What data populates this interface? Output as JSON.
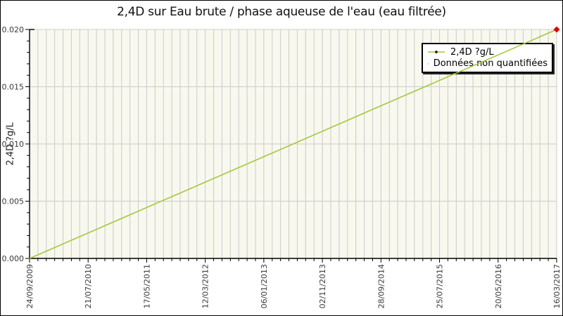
{
  "chart_data": {
    "type": "line",
    "title": "2,4D sur Eau brute / phase aqueuse de l'eau (eau filtrée)",
    "xlabel": "",
    "ylabel": "2,4D ?g/L",
    "x_tick_labels": [
      "24/09/2009",
      "21/07/2010",
      "17/05/2011",
      "12/03/2012",
      "06/01/2013",
      "02/11/2013",
      "28/09/2014",
      "25/07/2015",
      "20/05/2016",
      "16/03/2017"
    ],
    "y_tick_labels": [
      "0.000",
      "0.005",
      "0.010",
      "0.015",
      "0.020"
    ],
    "ylim": [
      0,
      0.02
    ],
    "y_minor_step": 0.001,
    "grid": true,
    "plot_bg": "#f8f8ee",
    "grid_color": "#cbcbcb",
    "series": [
      {
        "name": "2,4D ?g/L",
        "color": "#a2c93a",
        "x": [
          "24/09/2009",
          "16/03/2017"
        ],
        "y": [
          0.0,
          0.02
        ]
      }
    ],
    "unquantified_points": [
      {
        "x": "16/03/2017",
        "y": 0.02,
        "color": "#e10000"
      }
    ],
    "legend": {
      "position": "top-right",
      "entries": [
        {
          "label": "2,4D ?g/L",
          "marker": "dot-on-green-line",
          "color": "#a2c93a"
        },
        {
          "label": "Données non quantifiées",
          "marker": "red-diamond-on-gray-line",
          "color": "#e10000"
        }
      ]
    }
  }
}
